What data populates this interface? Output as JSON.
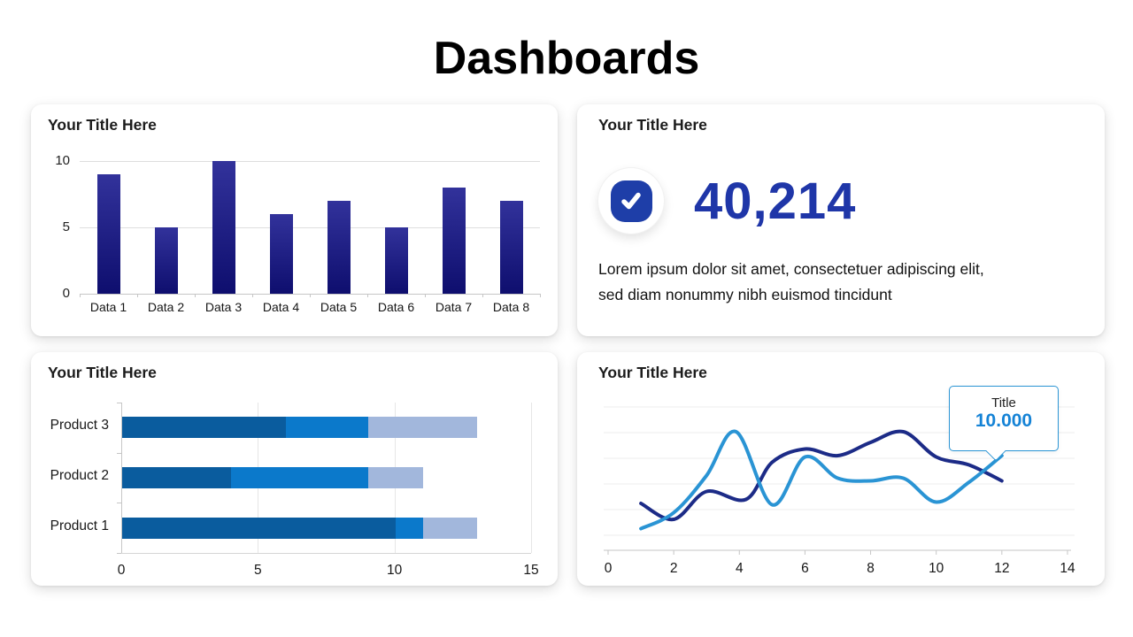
{
  "page": {
    "title": "Dashboards"
  },
  "panels": {
    "column_chart": {
      "title": "Your Title Here"
    },
    "kpi": {
      "title": "Your Title Here",
      "icon": "check-icon",
      "icon_color": "#1e3ea8",
      "value": "40,214",
      "value_color": "#1f36a8",
      "description_line1": "Lorem ipsum dolor sit amet, consectetuer adipiscing elit,",
      "description_line2": "sed diam nonummy nibh euismod tincidunt"
    },
    "stacked_bar": {
      "title": "Your Title Here"
    },
    "line_chart": {
      "title": "Your Title Here",
      "tooltip": {
        "label": "Title",
        "value": "10.000"
      }
    }
  },
  "chart_data": [
    {
      "id": "column_chart",
      "type": "bar",
      "title": "Your Title Here",
      "categories": [
        "Data 1",
        "Data 2",
        "Data 3",
        "Data 4",
        "Data 5",
        "Data 6",
        "Data 7",
        "Data 8"
      ],
      "values": [
        9,
        5,
        10,
        6,
        7,
        5,
        8,
        7
      ],
      "xlabel": "",
      "ylabel": "",
      "ylim": [
        0,
        10
      ],
      "yticks": [
        0,
        5,
        10
      ],
      "grid": "horizontal",
      "bar_gradient_top": "#32329b",
      "bar_gradient_bottom": "#0e0e6e"
    },
    {
      "id": "stacked_bar",
      "type": "bar",
      "orientation": "horizontal",
      "stacked": true,
      "title": "Your Title Here",
      "categories": [
        "Product 3",
        "Product 2",
        "Product 1"
      ],
      "series": [
        {
          "name": "segment-dark-blue",
          "color": "#0a5c9e",
          "values": [
            6,
            4,
            10
          ]
        },
        {
          "name": "segment-mid-blue",
          "color": "#0b79cb",
          "values": [
            3,
            5,
            1
          ]
        },
        {
          "name": "segment-light-blue",
          "color": "#a2b7dc",
          "values": [
            4,
            2,
            2
          ]
        }
      ],
      "xlim": [
        0,
        15
      ],
      "xticks": [
        0,
        5,
        10,
        15
      ],
      "grid": "vertical"
    },
    {
      "id": "line_chart",
      "type": "line",
      "title": "Your Title Here",
      "xlim": [
        0,
        14
      ],
      "xticks": [
        0,
        2,
        4,
        6,
        8,
        10,
        12,
        14
      ],
      "ylim": [
        0,
        10
      ],
      "grid": "horizontal",
      "series": [
        {
          "name": "navy-line",
          "color": "#1c2b87",
          "points": [
            [
              1,
              3.0
            ],
            [
              2,
              1.8
            ],
            [
              3,
              3.9
            ],
            [
              4.2,
              3.3
            ],
            [
              5,
              6.1
            ],
            [
              6,
              7.1
            ],
            [
              7,
              6.6
            ],
            [
              8,
              7.6
            ],
            [
              9,
              8.4
            ],
            [
              10,
              6.5
            ],
            [
              11,
              5.9
            ],
            [
              12,
              4.7
            ]
          ]
        },
        {
          "name": "light-blue-line",
          "color": "#2a94d4",
          "points": [
            [
              1,
              1.1
            ],
            [
              2,
              2.3
            ],
            [
              3,
              5.1
            ],
            [
              3.9,
              8.4
            ],
            [
              5,
              2.9
            ],
            [
              6,
              6.5
            ],
            [
              7,
              4.9
            ],
            [
              8,
              4.7
            ],
            [
              9,
              4.9
            ],
            [
              10,
              3.1
            ],
            [
              11,
              4.6
            ],
            [
              12,
              6.6
            ]
          ]
        }
      ],
      "tooltip": {
        "label": "Title",
        "value": "10.000",
        "anchor_x": 12
      }
    }
  ]
}
